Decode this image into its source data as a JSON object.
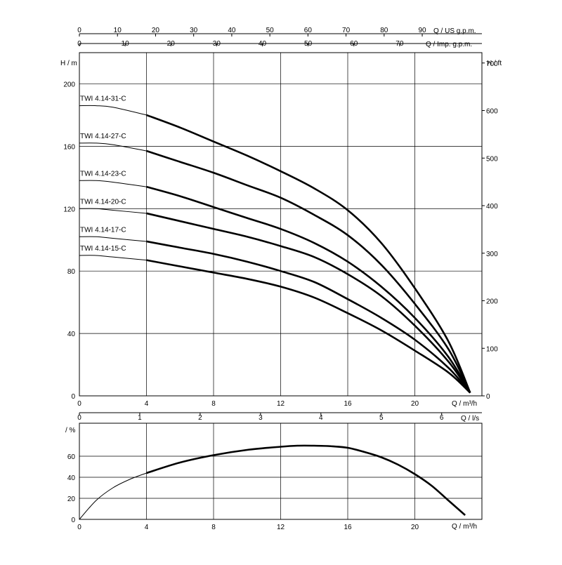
{
  "chart_data": [
    {
      "type": "line",
      "name": "head",
      "xlabel_main": "Q / m³/h",
      "xlabel_us": "Q / US g.p.m.",
      "xlabel_imp": "Q / Imp. g.p.m.",
      "ylabel_left": "H / m",
      "ylabel_right": "H / ft",
      "xlim": [
        0,
        24
      ],
      "ylim": [
        0,
        220
      ],
      "x_ticks": [
        "0",
        "4",
        "8",
        "12",
        "16",
        "20"
      ],
      "x_tick_values": [
        0,
        4,
        8,
        12,
        16,
        20
      ],
      "y_ticks": [
        "0",
        "40",
        "80",
        "120",
        "160",
        "200"
      ],
      "y_tick_values": [
        0,
        40,
        80,
        120,
        160,
        200
      ],
      "ft_ticks": [
        "0",
        "100",
        "200",
        "300",
        "400",
        "500",
        "600",
        "700"
      ],
      "ft_tick_values": [
        0,
        100,
        200,
        300,
        400,
        500,
        600,
        700
      ],
      "us_ticks": [
        "0",
        "10",
        "20",
        "30",
        "40",
        "50",
        "60",
        "70",
        "80",
        "90"
      ],
      "us_tick_values": [
        0,
        10,
        20,
        30,
        40,
        50,
        60,
        70,
        80,
        90
      ],
      "imp_ticks": [
        "0",
        "10",
        "20",
        "30",
        "40",
        "50",
        "60",
        "70"
      ],
      "imp_tick_values": [
        0,
        10,
        20,
        30,
        40,
        50,
        60,
        70
      ],
      "grid": true,
      "thin_until_x": 4,
      "series": [
        {
          "name": "TWI 4.14-31-C",
          "x": [
            0,
            1,
            2,
            4,
            6,
            8,
            10,
            12,
            14,
            16,
            18,
            20,
            22,
            23.3
          ],
          "y": [
            186,
            186,
            185,
            180,
            172,
            163,
            154,
            144,
            133,
            119,
            98,
            69,
            35,
            2
          ]
        },
        {
          "name": "TWI 4.14-27-C",
          "x": [
            0,
            1,
            2,
            4,
            6,
            8,
            10,
            12,
            14,
            16,
            18,
            20,
            22,
            23.3
          ],
          "y": [
            162,
            162,
            161,
            157,
            150,
            143,
            135,
            127,
            116,
            103,
            84,
            59,
            30,
            2
          ]
        },
        {
          "name": "TWI 4.14-23-C",
          "x": [
            0,
            1,
            2,
            4,
            6,
            8,
            10,
            12,
            14,
            16,
            18,
            20,
            22,
            23.3
          ],
          "y": [
            138,
            138,
            137,
            134,
            128,
            121,
            114,
            107,
            98,
            86,
            70,
            50,
            25,
            2
          ]
        },
        {
          "name": "TWI 4.14-20-C",
          "x": [
            0,
            1,
            2,
            4,
            6,
            8,
            10,
            12,
            14,
            16,
            18,
            20,
            22,
            23.3
          ],
          "y": [
            120,
            120,
            119,
            117,
            112,
            107,
            102,
            96,
            89,
            78,
            64,
            45,
            22,
            2
          ]
        },
        {
          "name": "TWI 4.14-17-C",
          "x": [
            0,
            1,
            2,
            4,
            6,
            8,
            10,
            12,
            14,
            16,
            18,
            20,
            22,
            23.3
          ],
          "y": [
            102,
            102,
            101,
            99,
            95,
            91,
            86,
            80,
            73,
            62,
            50,
            36,
            18,
            2
          ]
        },
        {
          "name": "TWI 4.14-15-C",
          "x": [
            0,
            1,
            2,
            4,
            6,
            8,
            10,
            12,
            14,
            16,
            18,
            20,
            22,
            23.3
          ],
          "y": [
            90,
            90,
            89,
            87,
            83,
            79,
            75,
            70,
            63,
            53,
            42,
            29,
            15,
            2
          ]
        }
      ]
    },
    {
      "type": "line",
      "name": "efficiency",
      "xlabel_main": "Q / m³/h",
      "xlabel_ls": "Q / l/s",
      "ylabel": "/ %",
      "xlim": [
        0,
        24
      ],
      "ylim": [
        0,
        80
      ],
      "x_ticks": [
        "0",
        "4",
        "8",
        "12",
        "16",
        "20"
      ],
      "x_tick_values": [
        0,
        4,
        8,
        12,
        16,
        20
      ],
      "y_ticks": [
        "0",
        "20",
        "40",
        "60"
      ],
      "y_tick_values": [
        0,
        20,
        40,
        60
      ],
      "ls_ticks": [
        "0",
        "1",
        "2",
        "3",
        "4",
        "5",
        "6"
      ],
      "ls_tick_values": [
        0,
        1,
        2,
        3,
        4,
        5,
        6
      ],
      "grid": true,
      "thin_until_x": 4,
      "series": [
        {
          "name": "",
          "x": [
            0,
            1,
            2,
            3,
            4,
            6,
            8,
            10,
            12,
            13,
            14,
            15,
            16,
            17,
            18,
            19,
            20,
            21,
            22,
            23
          ],
          "y": [
            0,
            18,
            30,
            38,
            44,
            54,
            61,
            66,
            69,
            70,
            70,
            69.5,
            68,
            64,
            59,
            52,
            43,
            32,
            18,
            4
          ]
        }
      ]
    }
  ]
}
